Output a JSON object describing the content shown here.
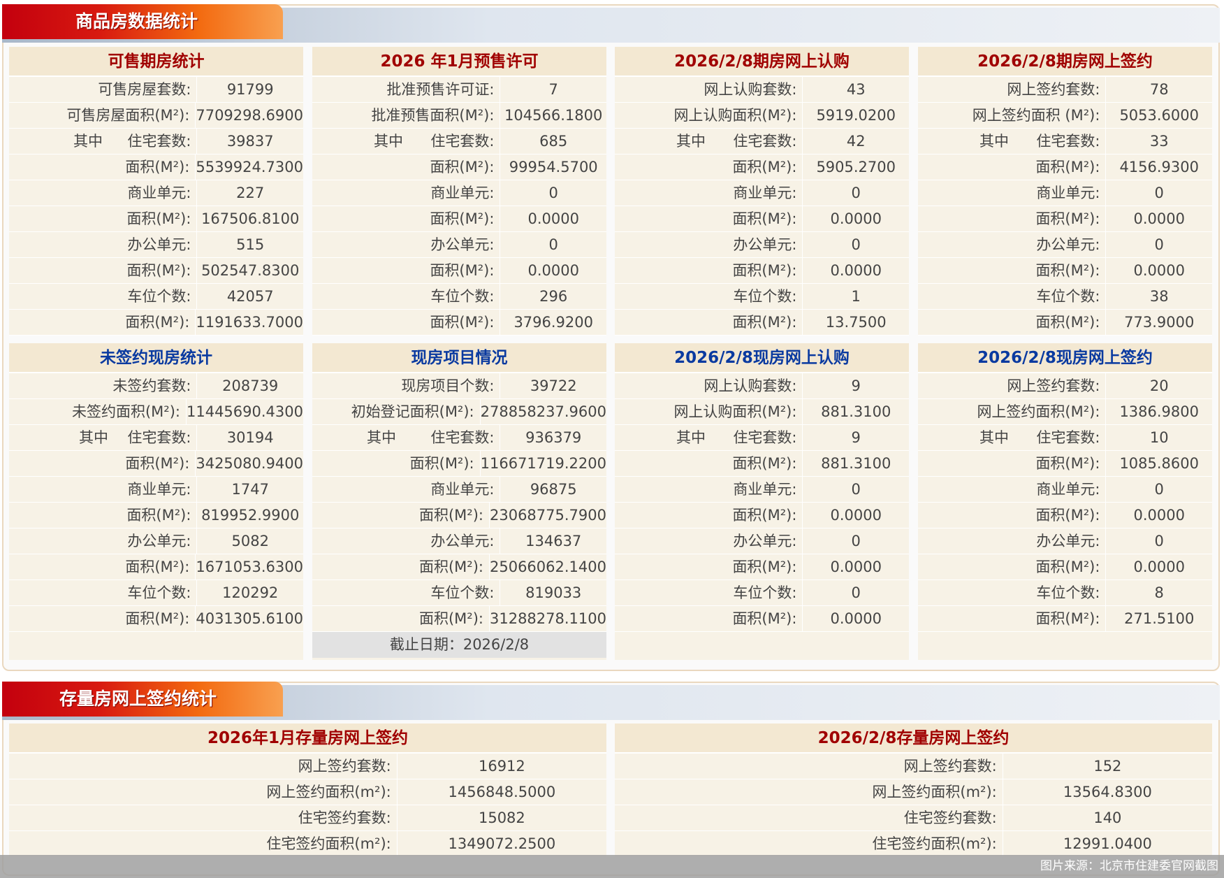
{
  "section1": {
    "title": "商品房数据统计"
  },
  "section2": {
    "title": "存量房网上签约统计"
  },
  "colors": {
    "red_title": "#a00000",
    "blue_title": "#0a3aa0"
  },
  "panels": [
    {
      "title": "可售期房统计",
      "color": "red",
      "rows": [
        {
          "label": "可售房屋套数:",
          "value": "91799"
        },
        {
          "label": "可售房屋面积(M²):",
          "value": "7709298.6900"
        },
        {
          "prefix": "其中",
          "label": "住宅套数:",
          "value": "39837"
        },
        {
          "label": "面积(M²):",
          "value": "5539924.7300"
        },
        {
          "label": "商业单元:",
          "value": "227"
        },
        {
          "label": "面积(M²):",
          "value": "167506.8100"
        },
        {
          "label": "办公单元:",
          "value": "515"
        },
        {
          "label": "面积(M²):",
          "value": "502547.8300"
        },
        {
          "label": "车位个数:",
          "value": "42057"
        },
        {
          "label": "面积(M²):",
          "value": "1191633.7000"
        }
      ]
    },
    {
      "title": "2026 年1月预售许可",
      "color": "red",
      "rows": [
        {
          "label": "批准预售许可证:",
          "value": "7"
        },
        {
          "label": "批准预售面积(M²):",
          "value": "104566.1800"
        },
        {
          "prefix": "其中",
          "label": "住宅套数:",
          "value": "685"
        },
        {
          "label": "面积(M²):",
          "value": "99954.5700"
        },
        {
          "label": "商业单元:",
          "value": "0"
        },
        {
          "label": "面积(M²):",
          "value": "0.0000"
        },
        {
          "label": "办公单元:",
          "value": "0"
        },
        {
          "label": "面积(M²):",
          "value": "0.0000"
        },
        {
          "label": "车位个数:",
          "value": "296"
        },
        {
          "label": "面积(M²):",
          "value": "3796.9200"
        }
      ]
    },
    {
      "title": "2026/2/8期房网上认购",
      "color": "red",
      "rows": [
        {
          "label": "网上认购套数:",
          "value": "43"
        },
        {
          "label": "网上认购面积(M²):",
          "value": "5919.0200"
        },
        {
          "prefix": "其中",
          "label": "住宅套数:",
          "value": "42"
        },
        {
          "label": "面积(M²):",
          "value": "5905.2700"
        },
        {
          "label": "商业单元:",
          "value": "0"
        },
        {
          "label": "面积(M²):",
          "value": "0.0000"
        },
        {
          "label": "办公单元:",
          "value": "0"
        },
        {
          "label": "面积(M²):",
          "value": "0.0000"
        },
        {
          "label": "车位个数:",
          "value": "1"
        },
        {
          "label": "面积(M²):",
          "value": "13.7500"
        }
      ]
    },
    {
      "title": "2026/2/8期房网上签约",
      "color": "red",
      "rows": [
        {
          "label": "网上签约套数:",
          "value": "78"
        },
        {
          "label": "网上签约面积 (M²):",
          "value": "5053.6000"
        },
        {
          "prefix": "其中",
          "label": "住宅套数:",
          "value": "33"
        },
        {
          "label": "面积(M²):",
          "value": "4156.9300"
        },
        {
          "label": "商业单元:",
          "value": "0"
        },
        {
          "label": "面积(M²):",
          "value": "0.0000"
        },
        {
          "label": "办公单元:",
          "value": "0"
        },
        {
          "label": "面积(M²):",
          "value": "0.0000"
        },
        {
          "label": "车位个数:",
          "value": "38"
        },
        {
          "label": "面积(M²):",
          "value": "773.9000"
        }
      ]
    },
    {
      "title": "未签约现房统计",
      "color": "blue",
      "rows": [
        {
          "label": "未签约套数:",
          "value": "208739"
        },
        {
          "label": "未签约面积(M²):",
          "value": "11445690.4300"
        },
        {
          "prefix": "其中",
          "label": "住宅套数:",
          "value": "30194"
        },
        {
          "label": "面积(M²):",
          "value": "3425080.9400"
        },
        {
          "label": "商业单元:",
          "value": "1747"
        },
        {
          "label": "面积(M²):",
          "value": "819952.9900"
        },
        {
          "label": "办公单元:",
          "value": "5082"
        },
        {
          "label": "面积(M²):",
          "value": "1671053.6300"
        },
        {
          "label": "车位个数:",
          "value": "120292"
        },
        {
          "label": "面积(M²):",
          "value": "4031305.6100"
        }
      ]
    },
    {
      "title": "现房项目情况",
      "color": "blue",
      "footer": "截止日期：2026/2/8",
      "rows": [
        {
          "label": "现房项目个数:",
          "value": "39722"
        },
        {
          "label": "初始登记面积(M²):",
          "value": "278858237.9600"
        },
        {
          "prefix": "其中",
          "label": "住宅套数:",
          "value": "936379"
        },
        {
          "label": "面积(M²):",
          "value": "116671719.2200"
        },
        {
          "label": "商业单元:",
          "value": "96875"
        },
        {
          "label": "面积(M²):",
          "value": "23068775.7900"
        },
        {
          "label": "办公单元:",
          "value": "134637"
        },
        {
          "label": "面积(M²):",
          "value": "25066062.1400"
        },
        {
          "label": "车位个数:",
          "value": "819033"
        },
        {
          "label": "面积(M²):",
          "value": "31288278.1100"
        }
      ]
    },
    {
      "title": "2026/2/8现房网上认购",
      "color": "blue",
      "rows": [
        {
          "label": "网上认购套数:",
          "value": "9"
        },
        {
          "label": "网上认购面积(M²):",
          "value": "881.3100"
        },
        {
          "prefix": "其中",
          "label": "住宅套数:",
          "value": "9"
        },
        {
          "label": "面积(M²):",
          "value": "881.3100"
        },
        {
          "label": "商业单元:",
          "value": "0"
        },
        {
          "label": "面积(M²):",
          "value": "0.0000"
        },
        {
          "label": "办公单元:",
          "value": "0"
        },
        {
          "label": "面积(M²):",
          "value": "0.0000"
        },
        {
          "label": "车位个数:",
          "value": "0"
        },
        {
          "label": "面积(M²):",
          "value": "0.0000"
        }
      ]
    },
    {
      "title": "2026/2/8现房网上签约",
      "color": "blue",
      "rows": [
        {
          "label": "网上签约套数:",
          "value": "20"
        },
        {
          "label": "网上签约面积(M²):",
          "value": "1386.9800"
        },
        {
          "prefix": "其中",
          "label": "住宅套数:",
          "value": "10"
        },
        {
          "label": "面积(M²):",
          "value": "1085.8600"
        },
        {
          "label": "商业单元:",
          "value": "0"
        },
        {
          "label": "面积(M²):",
          "value": "0.0000"
        },
        {
          "label": "办公单元:",
          "value": "0"
        },
        {
          "label": "面积(M²):",
          "value": "0.0000"
        },
        {
          "label": "车位个数:",
          "value": "8"
        },
        {
          "label": "面积(M²):",
          "value": "271.5100"
        }
      ]
    }
  ],
  "resale": [
    {
      "title": "2026年1月存量房网上签约",
      "rows": [
        {
          "label": "网上签约套数:",
          "value": "16912"
        },
        {
          "label": "网上签约面积(m²):",
          "value": "1456848.5000"
        },
        {
          "label": "住宅签约套数:",
          "value": "15082"
        },
        {
          "label": "住宅签约面积(m²):",
          "value": "1349072.2500"
        }
      ]
    },
    {
      "title": "2026/2/8存量房网上签约",
      "rows": [
        {
          "label": "网上签约套数:",
          "value": "152"
        },
        {
          "label": "网上签约面积(m²):",
          "value": "13564.8300"
        },
        {
          "label": "住宅签约套数:",
          "value": "140"
        },
        {
          "label": "住宅签约面积(m²):",
          "value": "12991.0400"
        }
      ]
    }
  ],
  "watermark": "图片来源：北京市住建委官网截图"
}
